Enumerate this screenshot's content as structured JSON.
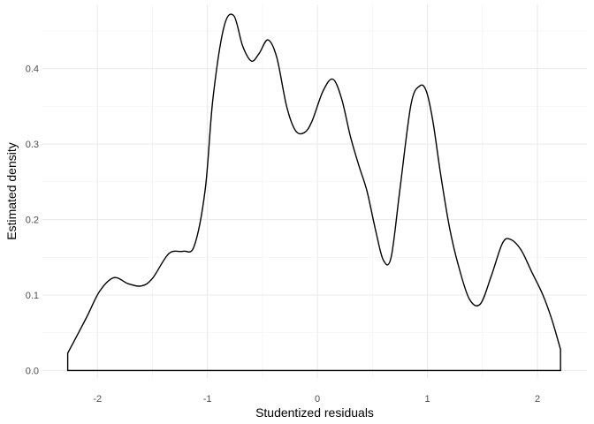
{
  "chart_data": {
    "type": "area",
    "title": "",
    "xlabel": "Studentized residuals",
    "ylabel": "Estimated density",
    "xlim": [
      -2.5,
      2.45
    ],
    "ylim": [
      -0.01,
      0.485
    ],
    "x_ticks": [
      {
        "value": -2,
        "label": "-2"
      },
      {
        "value": -1,
        "label": "-1"
      },
      {
        "value": 0,
        "label": "0"
      },
      {
        "value": 1,
        "label": "1"
      },
      {
        "value": 2,
        "label": "2"
      }
    ],
    "y_ticks": [
      {
        "value": 0.0,
        "label": "0.0"
      },
      {
        "value": 0.1,
        "label": "0.1"
      },
      {
        "value": 0.2,
        "label": "0.2"
      },
      {
        "value": 0.3,
        "label": "0.3"
      },
      {
        "value": 0.4,
        "label": "0.4"
      }
    ],
    "grid": true,
    "legend": "none",
    "series": [
      {
        "x": [
          -2.27,
          -2.1,
          -1.98,
          -1.85,
          -1.72,
          -1.6,
          -1.5,
          -1.35,
          -1.22,
          -1.12,
          -1.02,
          -0.95,
          -0.85,
          -0.76,
          -0.68,
          -0.6,
          -0.53,
          -0.45,
          -0.37,
          -0.28,
          -0.2,
          -0.12,
          -0.05,
          0.05,
          0.14,
          0.22,
          0.3,
          0.38,
          0.45,
          0.53,
          0.6,
          0.67,
          0.75,
          0.85,
          0.93,
          0.99,
          1.05,
          1.12,
          1.2,
          1.28,
          1.38,
          1.48,
          1.58,
          1.68,
          1.75,
          1.85,
          1.95,
          2.05,
          2.13,
          2.21
        ],
        "y": [
          0.023,
          0.07,
          0.105,
          0.123,
          0.115,
          0.112,
          0.122,
          0.155,
          0.158,
          0.165,
          0.24,
          0.36,
          0.455,
          0.47,
          0.43,
          0.41,
          0.42,
          0.438,
          0.415,
          0.35,
          0.318,
          0.315,
          0.33,
          0.37,
          0.386,
          0.36,
          0.31,
          0.27,
          0.238,
          0.185,
          0.146,
          0.15,
          0.24,
          0.352,
          0.377,
          0.37,
          0.33,
          0.26,
          0.19,
          0.14,
          0.095,
          0.088,
          0.125,
          0.168,
          0.174,
          0.16,
          0.13,
          0.1,
          0.068,
          0.028
        ]
      }
    ]
  }
}
